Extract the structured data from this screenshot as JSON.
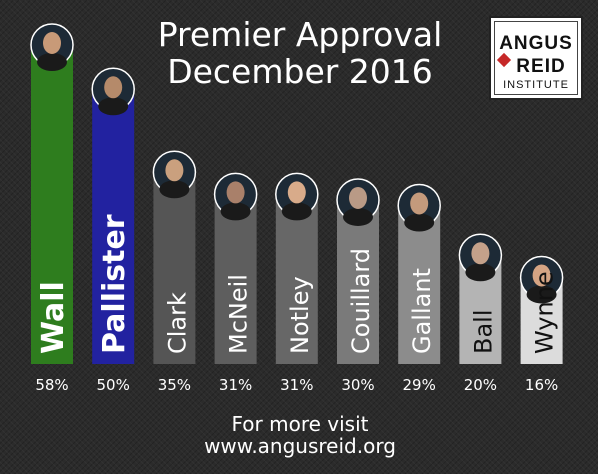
{
  "title_line1": "Premier Approval",
  "title_line2": "December 2016",
  "logo": {
    "line1": "ANGUS",
    "line2": "REID",
    "line3": "INSTITUTE"
  },
  "footer": {
    "line1": "For more visit",
    "line2": "www.angusreid.org"
  },
  "chart_data": {
    "type": "bar",
    "categories": [
      "Wall",
      "Pallister",
      "Clark",
      "McNeil",
      "Notley",
      "Couillard",
      "Gallant",
      "Ball",
      "Wynne"
    ],
    "values": [
      58,
      50,
      35,
      31,
      31,
      30,
      29,
      20,
      16
    ],
    "value_labels": [
      "58%",
      "50%",
      "35%",
      "31%",
      "31%",
      "30%",
      "29%",
      "20%",
      "16%"
    ],
    "unit": "%",
    "ylim": [
      0,
      58
    ],
    "grid": false,
    "legend": "none",
    "bar_colors": [
      "#2e7d1e",
      "#2222a0",
      "#555555",
      "#5e5e5e",
      "#676767",
      "#7a7a7a",
      "#8c8c8c",
      "#b4b4b4",
      "#dcdcdc"
    ],
    "label_colors": [
      "#ffffff",
      "#ffffff",
      "#ffffff",
      "#ffffff",
      "#ffffff",
      "#ffffff",
      "#ffffff",
      "#111111",
      "#111111"
    ],
    "portrait_colors": [
      "#c89a78",
      "#b58a6a",
      "#caa07e",
      "#a9806a",
      "#d8ab8a",
      "#b99a86",
      "#c49a7c",
      "#c4a18a",
      "#d4a484"
    ]
  }
}
